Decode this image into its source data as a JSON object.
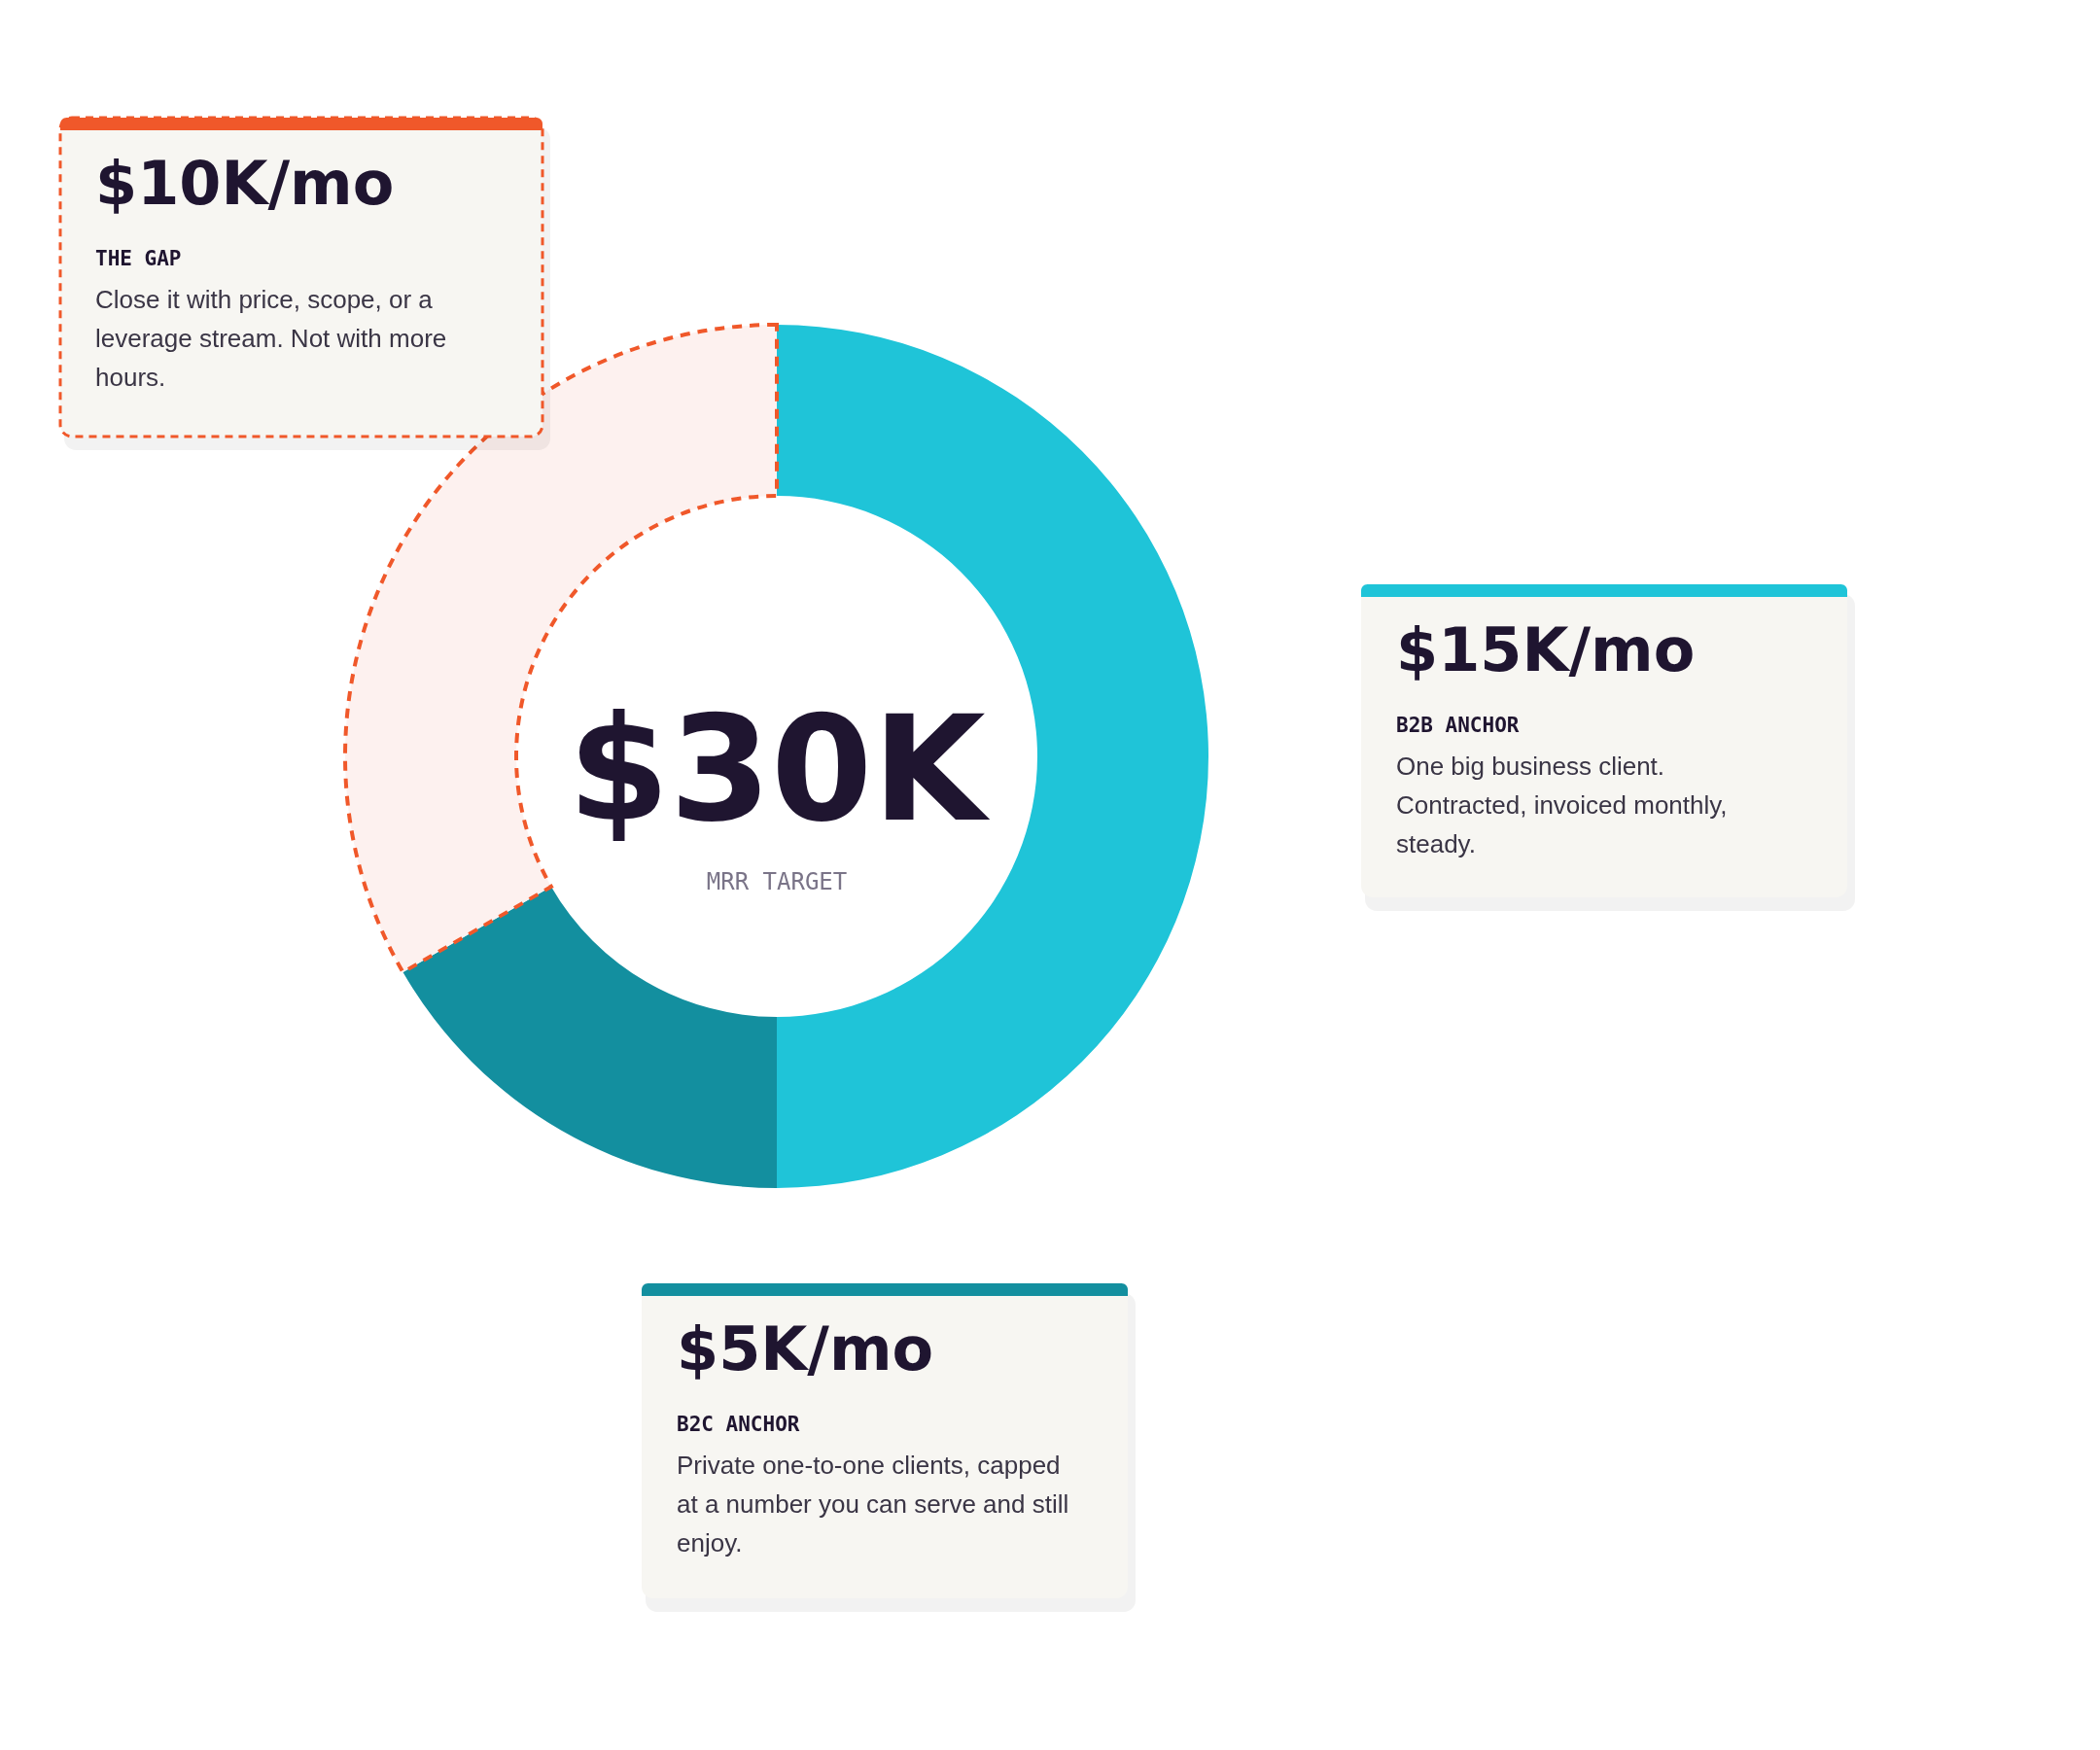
{
  "chart_data": {
    "type": "donut",
    "categories": [
      "B2B ANCHOR",
      "B2C ANCHOR",
      "THE GAP"
    ],
    "values": [
      15,
      5,
      10
    ],
    "colors": [
      "#1fc4d8",
      "#138f9f",
      "#fdf1ef"
    ],
    "value_labels": [
      "$15K/mo",
      "$5K/mo",
      "$10K/mo"
    ],
    "annotations": [
      "$30K",
      "MRR TARGET",
      "One big business client. Contracted, invoiced monthly, steady.",
      "Private one-to-one clients, capped at a number you can serve and still enjoy.",
      "Close it with price, scope, or a leverage stream. Not with more hours."
    ]
  }
}
